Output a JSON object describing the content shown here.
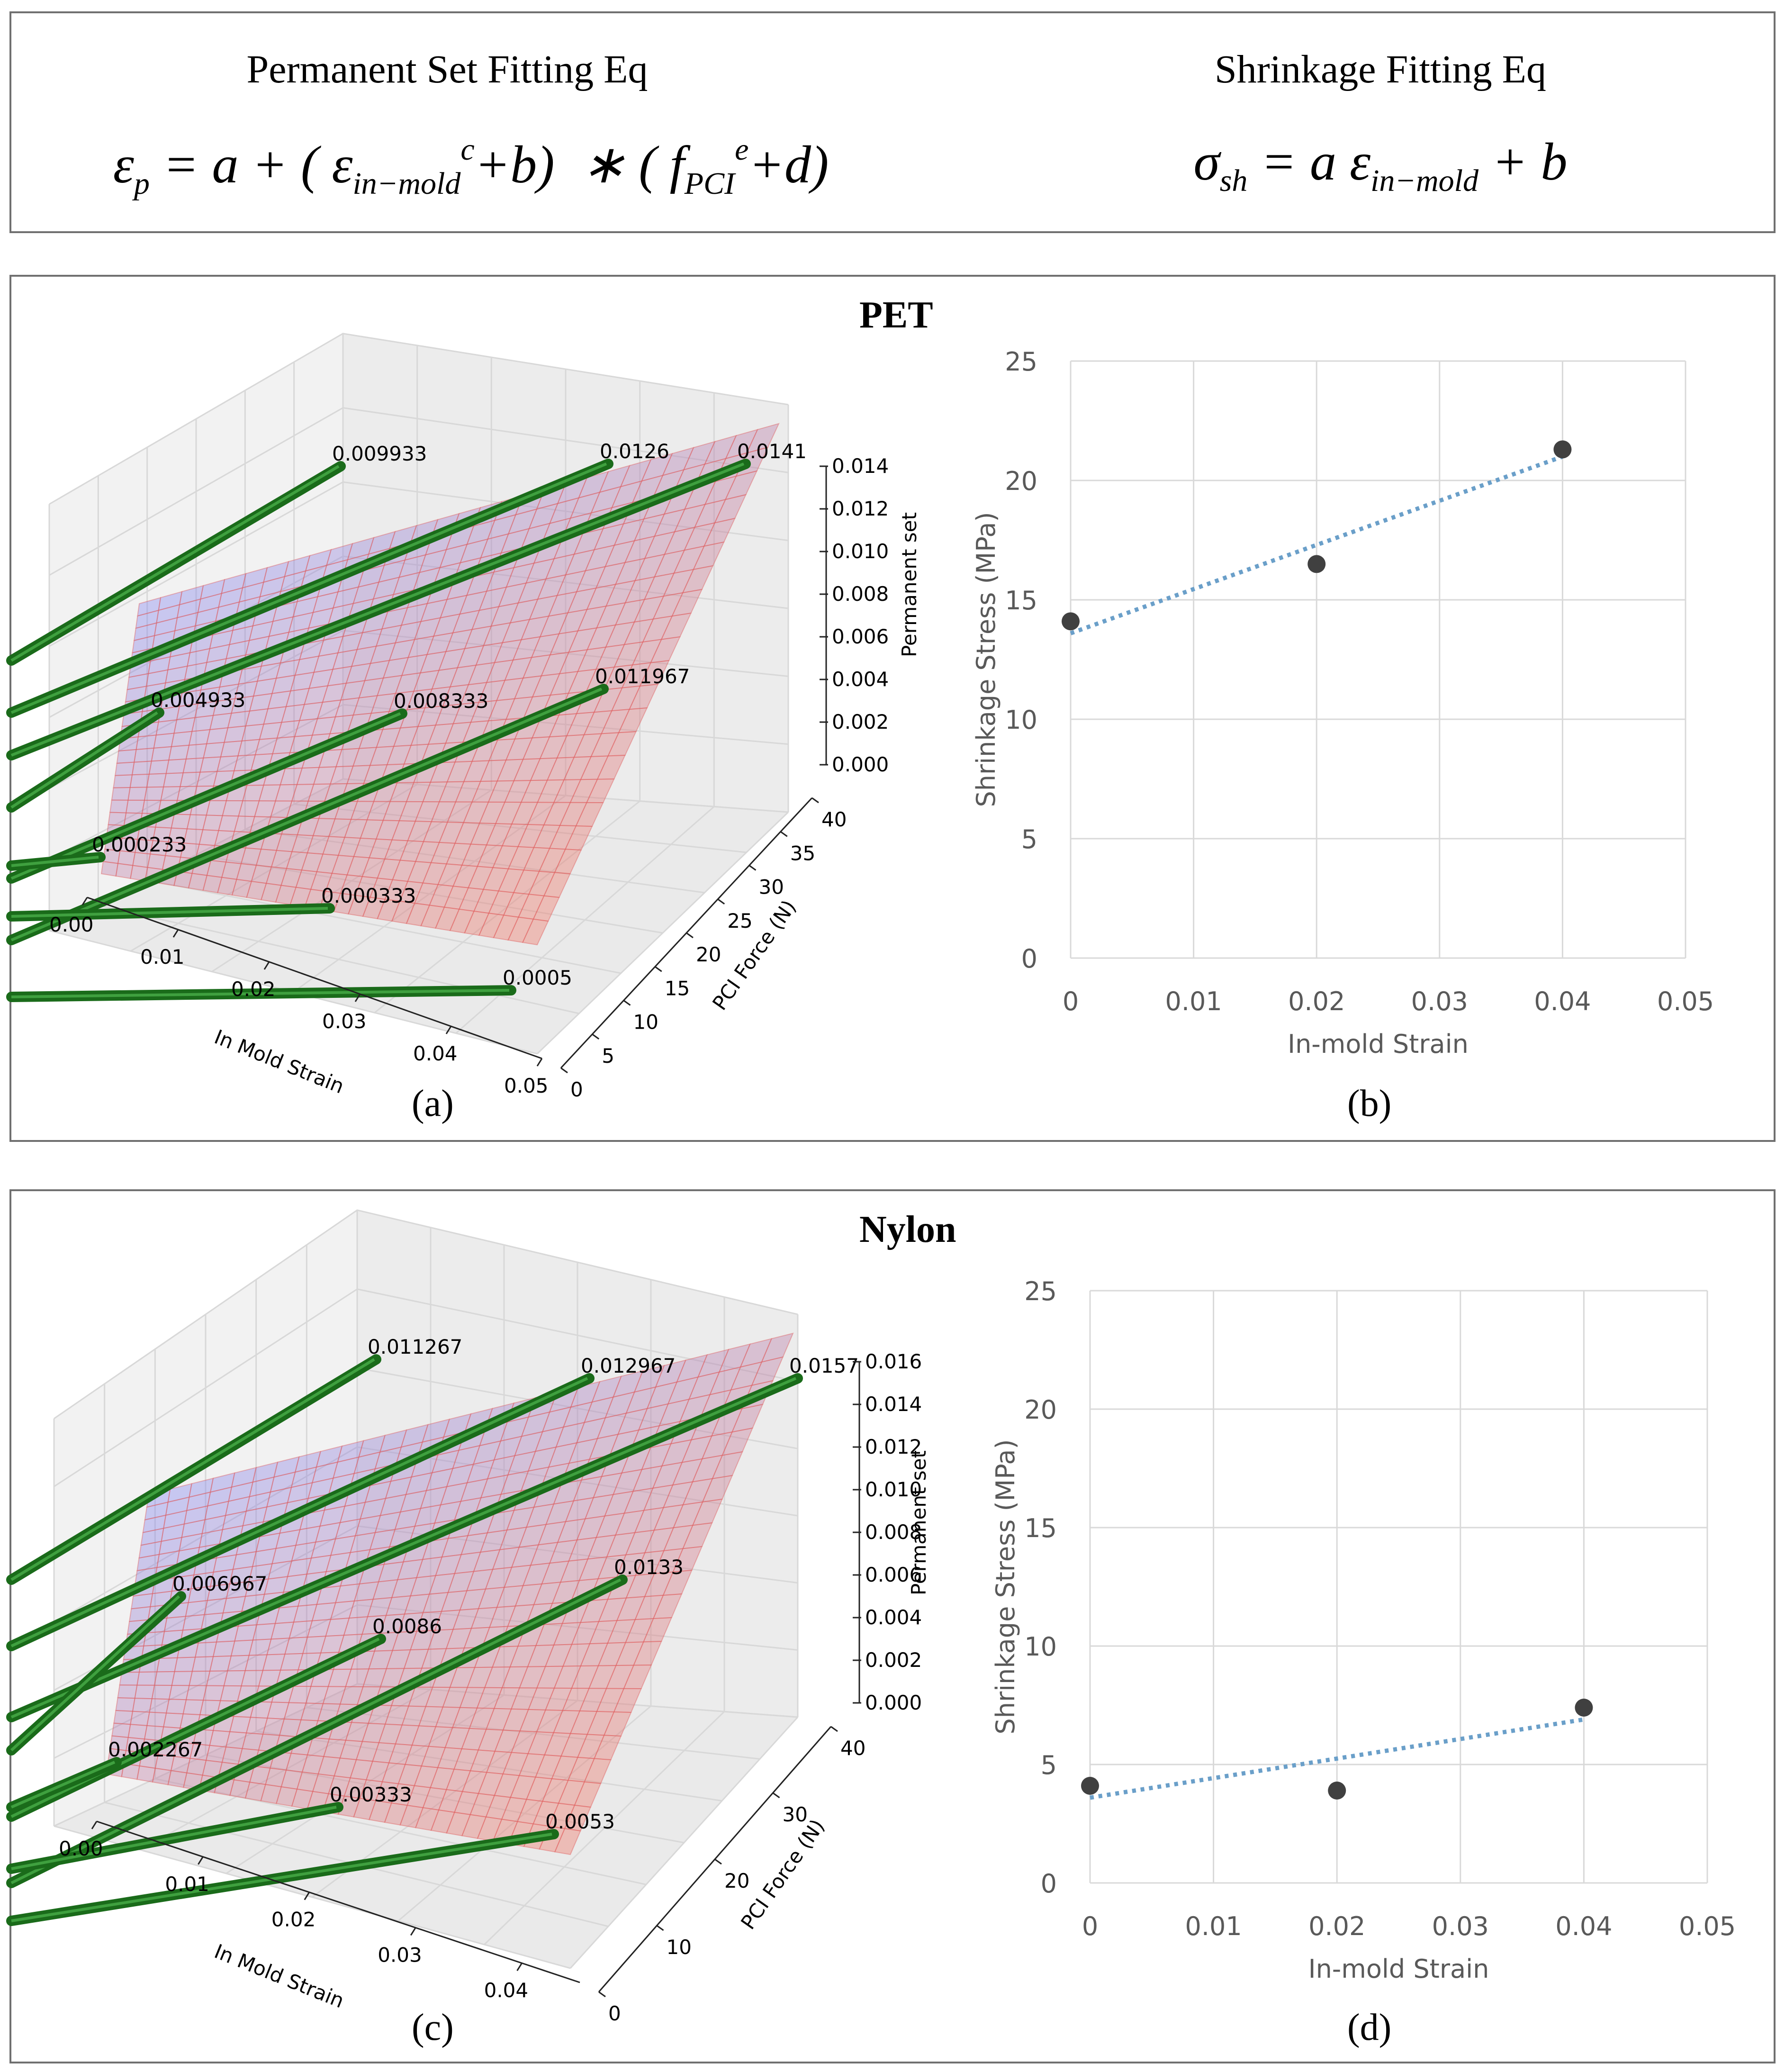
{
  "equations": {
    "permanent_set_title": "Permanent Set Fitting Eq",
    "shrinkage_title": "Shrinkage Fitting Eq"
  },
  "chart_data": [
    {
      "type": "surface3d",
      "panel": "(a)",
      "title": "PET",
      "xlabel": "In Mold Strain",
      "ylabel": "PCI Force (N)",
      "zlabel": "Permanent set",
      "x_ticks": [
        "0.00",
        "0.01",
        "0.02",
        "0.03",
        "0.04",
        "0.05"
      ],
      "y_ticks": [
        "0",
        "5",
        "10",
        "15",
        "20",
        "25",
        "30",
        "35",
        "40"
      ],
      "z_ticks": [
        "0.000",
        "0.002",
        "0.004",
        "0.006",
        "0.008",
        "0.010",
        "0.012",
        "0.014"
      ],
      "point_labels": [
        "0.009933",
        "0.0126",
        "0.0141",
        "0.004933",
        "0.008333",
        "0.011967",
        "0.000233",
        "0.000333",
        "0.0005"
      ],
      "colors": {
        "bar": "#1a6b1a",
        "surface_low": "#8080ee",
        "surface_high": "#ee7060",
        "grid": "#e06060"
      }
    },
    {
      "type": "scatter",
      "panel": "(b)",
      "xlabel": "In-mold Strain",
      "ylabel": "Shrinkage Stress (MPa)",
      "xlim": [
        0,
        0.05
      ],
      "ylim": [
        0,
        25
      ],
      "x_ticks": [
        "0",
        "0.01",
        "0.02",
        "0.03",
        "0.04",
        "0.05"
      ],
      "y_ticks": [
        "0",
        "5",
        "10",
        "15",
        "20",
        "25"
      ],
      "x": [
        0,
        0.02,
        0.04
      ],
      "y": [
        14.1,
        16.5,
        21.3
      ],
      "trendline": {
        "x": [
          0,
          0.04
        ],
        "y": [
          13.6,
          21.0
        ]
      },
      "colors": {
        "point": "#404040",
        "trend": "#6a9fc9"
      }
    },
    {
      "type": "surface3d",
      "panel": "(c)",
      "title": "Nylon",
      "xlabel": "In Mold Strain",
      "ylabel": "PCI Force (N)",
      "zlabel": "Permanent set",
      "x_ticks": [
        "0.00",
        "0.01",
        "0.02",
        "0.03",
        "0.04"
      ],
      "y_ticks": [
        "0",
        "10",
        "20",
        "30",
        "40"
      ],
      "z_ticks": [
        "0.000",
        "0.002",
        "0.004",
        "0.006",
        "0.008",
        "0.010",
        "0.012",
        "0.014",
        "0.016"
      ],
      "point_labels": [
        "0.011267",
        "0.012967",
        "0.0157",
        "0.006967",
        "0.0086",
        "0.0133",
        "0.002267",
        "0.00333",
        "0.0053"
      ],
      "colors": {
        "bar": "#1a6b1a",
        "surface_low": "#8080ee",
        "surface_high": "#ee7060",
        "grid": "#e06060"
      }
    },
    {
      "type": "scatter",
      "panel": "(d)",
      "xlabel": "In-mold Strain",
      "ylabel": "Shrinkage Stress (MPa)",
      "xlim": [
        0,
        0.05
      ],
      "ylim": [
        0,
        25
      ],
      "x_ticks": [
        "0",
        "0.01",
        "0.02",
        "0.03",
        "0.04",
        "0.05"
      ],
      "y_ticks": [
        "0",
        "5",
        "10",
        "15",
        "20",
        "25"
      ],
      "x": [
        0,
        0.02,
        0.04
      ],
      "y": [
        4.1,
        3.9,
        7.4
      ],
      "trendline": {
        "x": [
          0,
          0.04
        ],
        "y": [
          3.6,
          6.9
        ]
      },
      "colors": {
        "point": "#404040",
        "trend": "#6a9fc9"
      }
    }
  ]
}
